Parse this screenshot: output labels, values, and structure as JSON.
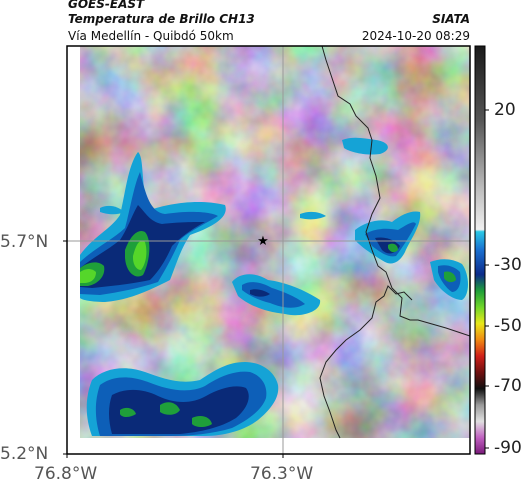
{
  "header": {
    "satellite": "GOES-EAST",
    "product": "Temperatura de Brillo CH13",
    "region": "Vía Medellín - Quibdó 50km",
    "agency": "SIATA",
    "datetime": "2024-10-20 08:29"
  },
  "axes": {
    "y_ticks": [
      "5.7°N",
      "5.2°N"
    ],
    "x_ticks": [
      "76.8°W",
      "76.3°W"
    ]
  },
  "colorbar": {
    "ticks": [
      "20",
      "-30",
      "-50",
      "-70",
      "-90"
    ]
  },
  "colors": {
    "frame": "#000000",
    "grid": "#999999"
  },
  "icons": {
    "marker": "star-icon"
  }
}
